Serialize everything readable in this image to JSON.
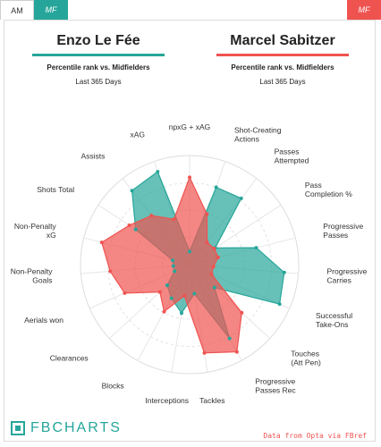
{
  "tabs": {
    "am": "AM",
    "mf_left": "MF",
    "mf_right": "MF"
  },
  "players": [
    {
      "name": "Enzo Le Fée",
      "subtitle": "Percentile rank vs. Midfielders",
      "period": "Last 365 Days",
      "color": "#26a69a"
    },
    {
      "name": "Marcel Sabitzer",
      "subtitle": "Percentile rank vs. Midfielders",
      "period": "Last 365 Days",
      "color": "#ef5350"
    }
  ],
  "footer": {
    "brand": "FBCHARTS",
    "credit": "Data from Opta via FBref"
  },
  "chart_data": {
    "type": "radar",
    "categories": [
      "npxG + xAG",
      "Shot-Creating Actions",
      "Passes Attempted",
      "Pass Completion %",
      "Progressive Passes",
      "Progressive Carries",
      "Successful Take-Ons",
      "Touches (Att Pen)",
      "Progressive Passes Rec",
      "Tackles",
      "Interceptions",
      "Blocks",
      "Clearances",
      "Aerials won",
      "Non-Penalty Goals",
      "Non-Penalty xG",
      "Shots Total",
      "Assists",
      "xAG"
    ],
    "range": [
      0,
      100
    ],
    "series": [
      {
        "name": "Enzo Le Fée",
        "color": "#26a69a",
        "values": [
          12,
          75,
          77,
          28,
          63,
          87,
          90,
          31,
          77,
          27,
          45,
          35,
          28,
          15,
          15,
          16,
          59,
          86,
          90
        ]
      },
      {
        "name": "Marcel Sabitzer",
        "color": "#ef5350",
        "values": [
          80,
          49,
          26,
          27,
          27,
          22,
          22,
          65,
          91,
          82,
          29,
          49,
          37,
          65,
          73,
          83,
          66,
          57,
          44
        ]
      }
    ]
  }
}
